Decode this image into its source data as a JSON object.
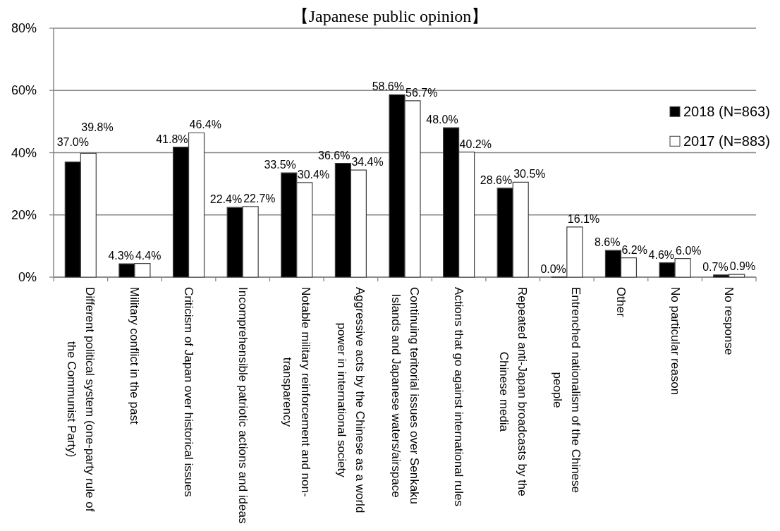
{
  "chart_data": {
    "type": "bar",
    "title": "【Japanese public opinion】",
    "categories": [
      "Different political system (one-party rule of the Communist Party)",
      "Military conflict in the past",
      "Criticism of Japan over historical issues",
      "Incomprehensible patriotic actions and ideas",
      "Notable military reinforcement and non-transparency",
      "Aggressive acts by the Chinese as a world power in international society",
      "Continuing teritorial issues over Senkaku Islands and Japanese waters/airspace",
      "Actions that go against international rules",
      "Repeated anti-Japan broadcasts by the Chinese media",
      "Entrenched nationalism of the Chinese people",
      "Other",
      "No particular reason",
      "No response"
    ],
    "series": [
      {
        "name": "2018 (N=863)",
        "color": "#000000",
        "values": [
          37.0,
          4.3,
          41.8,
          22.4,
          33.5,
          36.6,
          58.6,
          48.0,
          28.6,
          0.0,
          8.6,
          4.6,
          0.7
        ],
        "value_labels": [
          "37.0%",
          "4.3%",
          "41.8%",
          "22.4%",
          "33.5%",
          "36.6%",
          "58.6%",
          "48.0%",
          "28.6%",
          "0.0%",
          "8.6%",
          "4.6%",
          "0.7%"
        ]
      },
      {
        "name": "2017 (N=883)",
        "color": "#ffffff",
        "values": [
          39.8,
          4.4,
          46.4,
          22.7,
          30.4,
          34.4,
          56.7,
          40.2,
          30.5,
          16.1,
          6.2,
          6.0,
          0.9
        ],
        "value_labels": [
          "39.8%",
          "4.4%",
          "46.4%",
          "22.7%",
          "30.4%",
          "34.4%",
          "56.7%",
          "40.2%",
          "30.5%",
          "16.1%",
          "6.2%",
          "6.0%",
          "0.9%"
        ]
      }
    ],
    "ylim": [
      0,
      80
    ],
    "yticks": [
      {
        "value": 0,
        "label": "0%"
      },
      {
        "value": 20,
        "label": "20%"
      },
      {
        "value": 40,
        "label": "40%"
      },
      {
        "value": 60,
        "label": "60%"
      },
      {
        "value": 80,
        "label": "80%"
      }
    ],
    "grid": "y",
    "legend": "right"
  }
}
